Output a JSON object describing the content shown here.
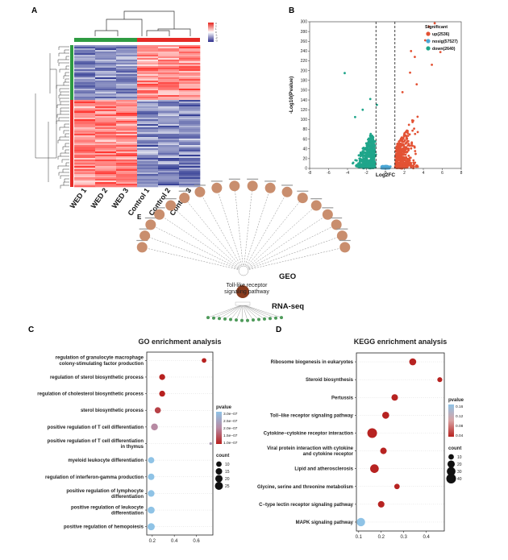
{
  "panels": {
    "a": "A",
    "b": "B",
    "c": "C",
    "d": "D",
    "e": "E"
  },
  "heatmap": {
    "samples": [
      "WED 1",
      "WED 2",
      "WED 3",
      "Control 1",
      "Control 2",
      "Control 3"
    ],
    "legend_ticks": [
      "3",
      "2",
      "1",
      "0",
      "-1",
      "-2",
      "-3"
    ]
  },
  "volcano": {
    "xlabel": "Log2FC",
    "ylabel": "-Log10(Pvalue)",
    "xticks": [
      -8,
      -6,
      -4,
      -2,
      0,
      2,
      4,
      6,
      8
    ],
    "yticks": [
      0,
      20,
      40,
      60,
      80,
      100,
      120,
      140,
      160,
      180,
      200,
      220,
      240,
      260,
      280,
      300
    ],
    "legend_title": "Significant",
    "legend": [
      {
        "label": "up(2536)",
        "color": "#e35234"
      },
      {
        "label": "nosig(57527)",
        "color": "#4aa7d6"
      },
      {
        "label": "down(2640)",
        "color": "#1fa58a"
      }
    ]
  },
  "network": {
    "geo_label": "GEO",
    "rna_label": "RNA-seq",
    "hub_label": "Toll-like receptor signaling pathway",
    "node_color": "#c98e6e",
    "green_color": "#4e9a5a"
  },
  "chart_data": [
    {
      "type": "scatter",
      "title": "GO enrichment analysis",
      "categories": [
        "regulation of granulocyte macrophage colony-stimulating factor production",
        "regulation of sterol biosynthetic process",
        "regulation of cholesterol biosynthetic process",
        "sterol biosynthetic process",
        "positive regulation of T cell differentiation",
        "positive regulation of T cell differentiation in thymus",
        "myeloid leukocyte differentiation",
        "regulation of interferon-gamma production",
        "positive regulation of lymphocyte differentiation",
        "positive regulation of leukocyte differentiation",
        "positive regulation of hemopoiesis"
      ],
      "x": [
        0.67,
        0.29,
        0.29,
        0.25,
        0.22,
        0.73,
        0.19,
        0.19,
        0.19,
        0.19,
        0.19
      ],
      "count": [
        7,
        12,
        12,
        13,
        17,
        4,
        14,
        15,
        16,
        18,
        19
      ],
      "pvalue": [
        1e-07,
        1e-07,
        1e-07,
        1.3e-07,
        2e-07,
        2.3e-07,
        3e-07,
        3e-07,
        3e-07,
        3e-07,
        3e-07
      ],
      "xticks": [
        "0.2",
        "0.4",
        "0.6"
      ],
      "xlim": [
        0.15,
        0.75
      ],
      "legend_title_pvalue": "pvalue",
      "pvalue_ticks": [
        "3.0e−07",
        "2.5e−07",
        "2.0e−07",
        "1.5e−07",
        "1.0e−07"
      ],
      "legend_title_count": "count",
      "count_ticks": [
        "10",
        "15",
        "20",
        "25"
      ]
    },
    {
      "type": "scatter",
      "title": "KEGG enrichment analysis",
      "categories": [
        "Ribosome biogenesis in eukaryotes",
        "Steroid biosynthesis",
        "Pertussis",
        "Toll−like receptor signaling pathway",
        "Cytokine−cytokine receptor interaction",
        "Viral protein interaction with cytokine and cytokine receptor",
        "Lipid and atherosclerosis",
        "Glycine, serine and threonine metabolism",
        "C−type lectin receptor signaling pathway",
        "MAPK signaling pathway"
      ],
      "x": [
        0.34,
        0.46,
        0.26,
        0.22,
        0.16,
        0.21,
        0.17,
        0.27,
        0.2,
        0.11
      ],
      "count": [
        18,
        8,
        15,
        18,
        40,
        15,
        30,
        10,
        15,
        28
      ],
      "pvalue": [
        0.001,
        0.001,
        0.001,
        0.001,
        0.001,
        0.001,
        0.001,
        0.001,
        0.001,
        0.16
      ],
      "xticks": [
        "0.1",
        "0.2",
        "0.3",
        "0.4"
      ],
      "xlim": [
        0.09,
        0.48
      ],
      "legend_title_pvalue": "pvalue",
      "pvalue_ticks": [
        "0.16",
        "0.12",
        "0.08",
        "0.04"
      ],
      "legend_title_count": "count",
      "count_ticks": [
        "10",
        "20",
        "30",
        "40"
      ]
    }
  ]
}
